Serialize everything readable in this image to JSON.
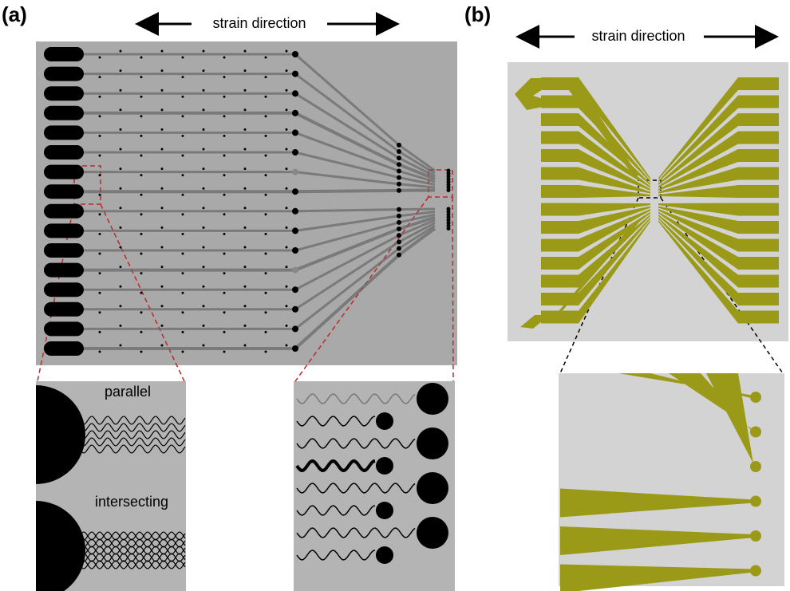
{
  "panel_a": {
    "label": "(a)",
    "strain_label": "strain direction",
    "inset_top": "parallel",
    "inset_bottom": "intersecting"
  },
  "panel_b": {
    "label": "(b)",
    "strain_label": "strain direction"
  }
}
